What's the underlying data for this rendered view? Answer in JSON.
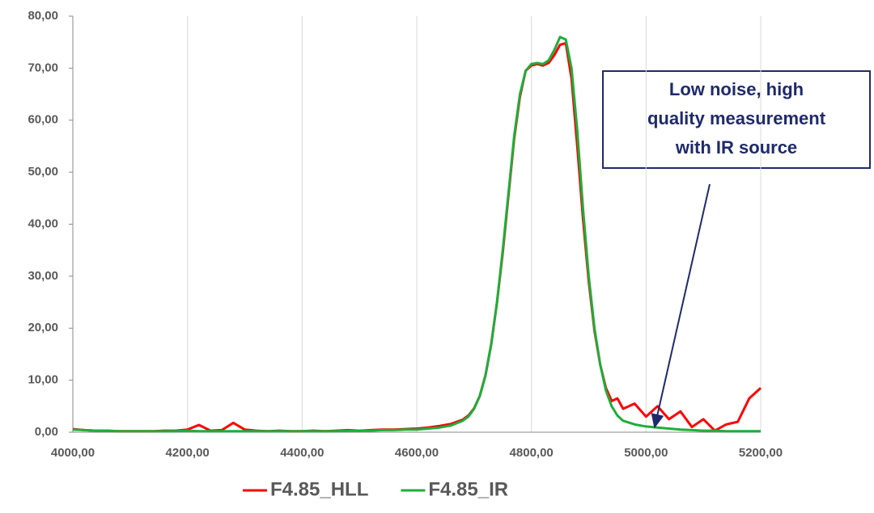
{
  "chart_data": {
    "type": "line",
    "x": [
      4000,
      4020,
      4040,
      4060,
      4080,
      4100,
      4120,
      4140,
      4160,
      4180,
      4200,
      4220,
      4240,
      4260,
      4280,
      4300,
      4320,
      4340,
      4360,
      4380,
      4400,
      4420,
      4440,
      4460,
      4480,
      4500,
      4520,
      4540,
      4560,
      4580,
      4600,
      4620,
      4640,
      4660,
      4680,
      4690,
      4700,
      4710,
      4720,
      4730,
      4740,
      4750,
      4760,
      4770,
      4780,
      4790,
      4800,
      4810,
      4820,
      4830,
      4840,
      4850,
      4860,
      4870,
      4880,
      4890,
      4900,
      4910,
      4920,
      4930,
      4940,
      4950,
      4960,
      4980,
      5000,
      5020,
      5040,
      5060,
      5080,
      5100,
      5120,
      5140,
      5160,
      5180,
      5200
    ],
    "series": [
      {
        "name": "F4.85_HLL",
        "color": "#ff0000",
        "values": [
          0.6,
          0.4,
          0.3,
          0.3,
          0.2,
          0.2,
          0.2,
          0.2,
          0.3,
          0.3,
          0.5,
          1.4,
          0.3,
          0.4,
          1.8,
          0.5,
          0.3,
          0.2,
          0.3,
          0.2,
          0.2,
          0.3,
          0.2,
          0.3,
          0.4,
          0.3,
          0.4,
          0.5,
          0.5,
          0.6,
          0.7,
          0.9,
          1.2,
          1.6,
          2.4,
          3.2,
          4.6,
          7,
          11,
          17,
          25,
          34.5,
          45.5,
          56.5,
          64.5,
          69.5,
          70.5,
          70.8,
          70.5,
          71,
          72.5,
          74.5,
          74.8,
          68,
          55,
          41,
          29,
          19.5,
          13,
          8.5,
          6,
          6.5,
          4.5,
          5.5,
          3,
          5,
          2.5,
          4,
          1,
          2.5,
          0.3,
          1.5,
          2,
          6.5,
          8.5
        ]
      },
      {
        "name": "F4.85_IR",
        "color": "#1fad3a",
        "values": [
          0.5,
          0.4,
          0.3,
          0.3,
          0.2,
          0.2,
          0.2,
          0.2,
          0.2,
          0.2,
          0.3,
          0.2,
          0.2,
          0.2,
          0.2,
          0.2,
          0.2,
          0.2,
          0.2,
          0.2,
          0.2,
          0.2,
          0.2,
          0.2,
          0.3,
          0.3,
          0.3,
          0.4,
          0.4,
          0.5,
          0.5,
          0.7,
          0.9,
          1.3,
          2.2,
          3,
          4.5,
          7,
          11,
          17,
          25,
          35,
          46,
          57,
          65,
          69.5,
          70.8,
          71,
          70.8,
          71.5,
          73.5,
          76,
          75.5,
          70,
          58,
          43,
          30,
          20,
          13,
          8,
          5,
          3.2,
          2.2,
          1.5,
          1.1,
          0.9,
          0.7,
          0.5,
          0.4,
          0.3,
          0.3,
          0.2,
          0.2,
          0.2,
          0.2
        ]
      }
    ],
    "xlim": [
      4000,
      5200
    ],
    "xticks": [
      {
        "value": 4000,
        "label": "4000,00"
      },
      {
        "value": 4200,
        "label": "4200,00"
      },
      {
        "value": 4400,
        "label": "4400,00"
      },
      {
        "value": 4600,
        "label": "4600,00"
      },
      {
        "value": 4800,
        "label": "4800,00"
      },
      {
        "value": 5000,
        "label": "5000,00"
      },
      {
        "value": 5200,
        "label": "5200,00"
      }
    ],
    "ylim": [
      0,
      80
    ],
    "yticks": [
      {
        "value": 0,
        "label": "0,00"
      },
      {
        "value": 10,
        "label": "10,00"
      },
      {
        "value": 20,
        "label": "20,00"
      },
      {
        "value": 30,
        "label": "30,00"
      },
      {
        "value": 40,
        "label": "40,00"
      },
      {
        "value": 50,
        "label": "50,00"
      },
      {
        "value": 60,
        "label": "60,00"
      },
      {
        "value": 70,
        "label": "70,00"
      },
      {
        "value": 80,
        "label": "80,00"
      }
    ],
    "grid": "x",
    "annotation": {
      "lines": [
        "Low noise, high",
        "quality measurement",
        "with IR source"
      ],
      "x": 5015,
      "y": 1
    },
    "legend": "bottom"
  }
}
